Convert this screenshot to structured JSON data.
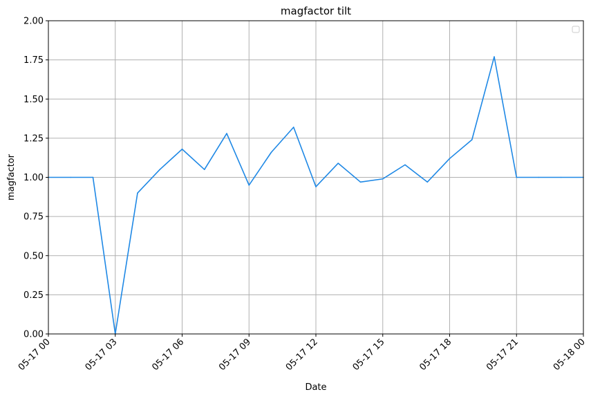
{
  "chart_data": {
    "type": "line",
    "title": "magfactor tilt",
    "xlabel": "Date",
    "ylabel": "magfactor",
    "xlim": [
      "2023-05-17 00:00",
      "2023-05-18 00:00"
    ],
    "ylim": [
      0,
      2
    ],
    "grid": true,
    "legend": "top-right",
    "x_tick_labels": [
      "05-17 00",
      "05-17 03",
      "05-17 06",
      "05-17 09",
      "05-17 12",
      "05-17 15",
      "05-17 18",
      "05-17 21",
      "05-18 00"
    ],
    "y_tick_labels": [
      "0.00",
      "0.25",
      "0.50",
      "0.75",
      "1.00",
      "1.25",
      "1.50",
      "1.75",
      "2.00"
    ],
    "series": [
      {
        "color": "#1e88e5",
        "x": [
          "05-17 00:00",
          "05-17 01:00",
          "05-17 02:00",
          "05-17 03:00",
          "05-17 04:00",
          "05-17 05:00",
          "05-17 06:00",
          "05-17 07:00",
          "05-17 08:00",
          "05-17 09:00",
          "05-17 10:00",
          "05-17 11:00",
          "05-17 12:00",
          "05-17 13:00",
          "05-17 14:00",
          "05-17 15:00",
          "05-17 16:00",
          "05-17 17:00",
          "05-17 18:00",
          "05-17 19:00",
          "05-17 20:00",
          "05-17 21:00",
          "05-17 22:00",
          "05-17 23:00",
          "05-18 00:00"
        ],
        "y": [
          1.0,
          1.0,
          1.0,
          0.0,
          0.9,
          1.05,
          1.18,
          1.05,
          1.28,
          0.95,
          1.16,
          1.32,
          0.94,
          1.09,
          0.97,
          0.99,
          1.08,
          0.97,
          1.12,
          1.24,
          1.77,
          1.0,
          1.0,
          1.0,
          1.0
        ]
      }
    ]
  }
}
